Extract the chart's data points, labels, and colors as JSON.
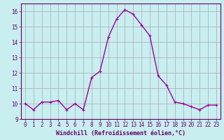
{
  "x": [
    0,
    1,
    2,
    3,
    4,
    5,
    6,
    7,
    8,
    9,
    10,
    11,
    12,
    13,
    14,
    15,
    16,
    17,
    18,
    19,
    20,
    21,
    22,
    23
  ],
  "y": [
    10.0,
    9.6,
    10.1,
    10.1,
    10.2,
    9.6,
    10.0,
    9.6,
    11.7,
    12.1,
    14.3,
    15.5,
    16.1,
    15.8,
    15.1,
    14.4,
    11.8,
    11.2,
    10.1,
    10.0,
    9.8,
    9.6,
    9.9,
    9.9
  ],
  "xlabel": "Windchill (Refroidissement éolien,°C)",
  "xlim": [
    -0.5,
    23.5
  ],
  "ylim": [
    9.0,
    16.5
  ],
  "yticks": [
    9,
    10,
    11,
    12,
    13,
    14,
    15,
    16
  ],
  "xticks": [
    0,
    1,
    2,
    3,
    4,
    5,
    6,
    7,
    8,
    9,
    10,
    11,
    12,
    13,
    14,
    15,
    16,
    17,
    18,
    19,
    20,
    21,
    22,
    23
  ],
  "line_color": "#990099",
  "marker": "+",
  "background_color": "#c8eef0",
  "grid_color": "#aaaaaa",
  "label_color": "#660066",
  "tick_color": "#660066",
  "spine_color": "#660066",
  "tick_fontsize": 5.5,
  "xlabel_fontsize": 6.0,
  "line_width": 1.0,
  "marker_size": 3.5,
  "marker_edge_width": 0.8
}
